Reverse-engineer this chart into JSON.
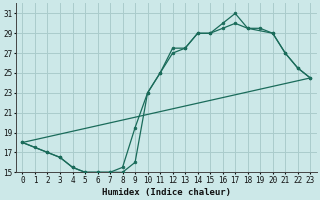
{
  "title": "",
  "xlabel": "Humidex (Indice chaleur)",
  "bg_color": "#cce8e8",
  "grid_color": "#aacccc",
  "line_color": "#1a6b5a",
  "xlim": [
    -0.5,
    23.5
  ],
  "ylim": [
    15,
    32
  ],
  "xticks": [
    0,
    1,
    2,
    3,
    4,
    5,
    6,
    7,
    8,
    9,
    10,
    11,
    12,
    13,
    14,
    15,
    16,
    17,
    18,
    19,
    20,
    21,
    22,
    23
  ],
  "yticks": [
    15,
    17,
    19,
    21,
    23,
    25,
    27,
    29,
    31
  ],
  "line1_x": [
    0,
    1,
    2,
    3,
    4,
    5,
    6,
    7,
    8,
    9,
    10,
    11,
    12,
    13,
    14,
    15,
    16,
    17,
    18,
    20,
    21,
    22,
    23
  ],
  "line1_y": [
    18,
    17.5,
    17,
    16.5,
    15.5,
    15,
    15,
    15,
    15.5,
    19.5,
    23,
    25,
    27.5,
    27.5,
    29,
    29,
    30,
    31,
    29.5,
    29,
    27,
    25.5,
    24.5
  ],
  "line2_x": [
    0,
    2,
    3,
    4,
    5,
    6,
    7,
    8,
    9,
    10,
    11,
    12,
    13,
    14,
    15,
    16,
    17,
    18,
    19,
    20,
    21,
    22,
    23
  ],
  "line2_y": [
    18,
    17,
    16.5,
    15.5,
    15,
    15,
    15,
    15,
    16,
    23,
    25,
    27,
    27.5,
    29,
    29,
    29.5,
    30,
    29.5,
    29.5,
    29,
    27,
    25.5,
    24.5
  ],
  "line3_x": [
    0,
    23
  ],
  "line3_y": [
    18,
    24.5
  ]
}
